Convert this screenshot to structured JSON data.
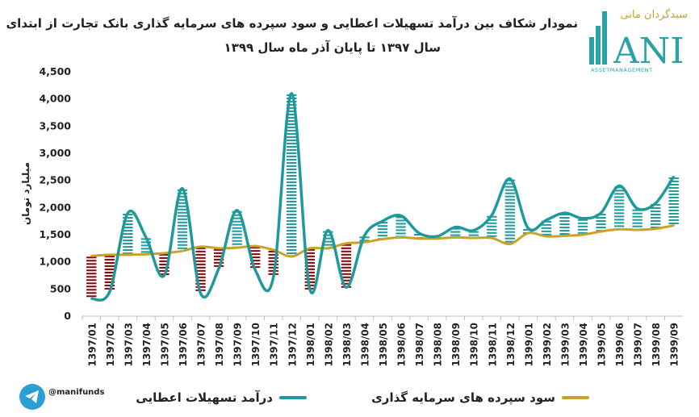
{
  "title": {
    "line1": "نمودار شکاف بین درآمد تسهیلات اعطایی و سود سپرده های سرمایه گذاری بانک تجارت از ابتدای",
    "line2": "سال ۱۳۹۷ تا پایان آذر ماه سال ۱۳۹۹"
  },
  "logo": {
    "persian_text": "سبدگردان مانی",
    "brand": "ANI",
    "tagline": "ASSETMANAGEMENT",
    "colors": {
      "gold": "#c9a227",
      "teal": "#2ba3a6"
    }
  },
  "social": {
    "icon": "telegram-icon",
    "handle": "@manifunds"
  },
  "colors": {
    "income": "#1f9a9c",
    "deposit": "#c9a227",
    "positive_gap": "#1f9a9c",
    "negative_gap": "#8b0000"
  },
  "chart_data": {
    "type": "line",
    "ylabel": "میلیارد تومان",
    "ylim": [
      0,
      4500
    ],
    "yticks": [
      "0",
      "500",
      "1,000",
      "1,500",
      "2,000",
      "2,500",
      "3,000",
      "3,500",
      "4,000",
      "4,500"
    ],
    "categories": [
      "1397/01",
      "1397/02",
      "1397/03",
      "1397/04",
      "1397/05",
      "1397/06",
      "1397/07",
      "1397/08",
      "1397/09",
      "1397/10",
      "1397/11",
      "1397/12",
      "1398/01",
      "1398/02",
      "1398/03",
      "1398/04",
      "1398/05",
      "1398/06",
      "1398/07",
      "1398/08",
      "1398/09",
      "1398/10",
      "1398/11",
      "1398/12",
      "1399/01",
      "1399/02",
      "1399/03",
      "1399/04",
      "1399/05",
      "1399/06",
      "1399/07",
      "1399/08",
      "1399/09"
    ],
    "series": [
      {
        "name": "درآمد تسهیلات اعطایی",
        "values": [
          320,
          450,
          1900,
          1450,
          750,
          2350,
          420,
          880,
          1950,
          850,
          720,
          4100,
          500,
          1580,
          530,
          1480,
          1750,
          1850,
          1530,
          1470,
          1640,
          1580,
          1860,
          2530,
          1620,
          1770,
          1900,
          1800,
          1900,
          2400,
          1980,
          2080,
          2570
        ]
      },
      {
        "name": "سود سپرده های سرمایه گذاری",
        "values": [
          1110,
          1130,
          1130,
          1140,
          1160,
          1200,
          1280,
          1250,
          1260,
          1290,
          1220,
          1100,
          1250,
          1250,
          1340,
          1360,
          1420,
          1450,
          1430,
          1430,
          1450,
          1440,
          1440,
          1330,
          1530,
          1470,
          1480,
          1500,
          1560,
          1600,
          1590,
          1610,
          1670
        ]
      }
    ]
  }
}
